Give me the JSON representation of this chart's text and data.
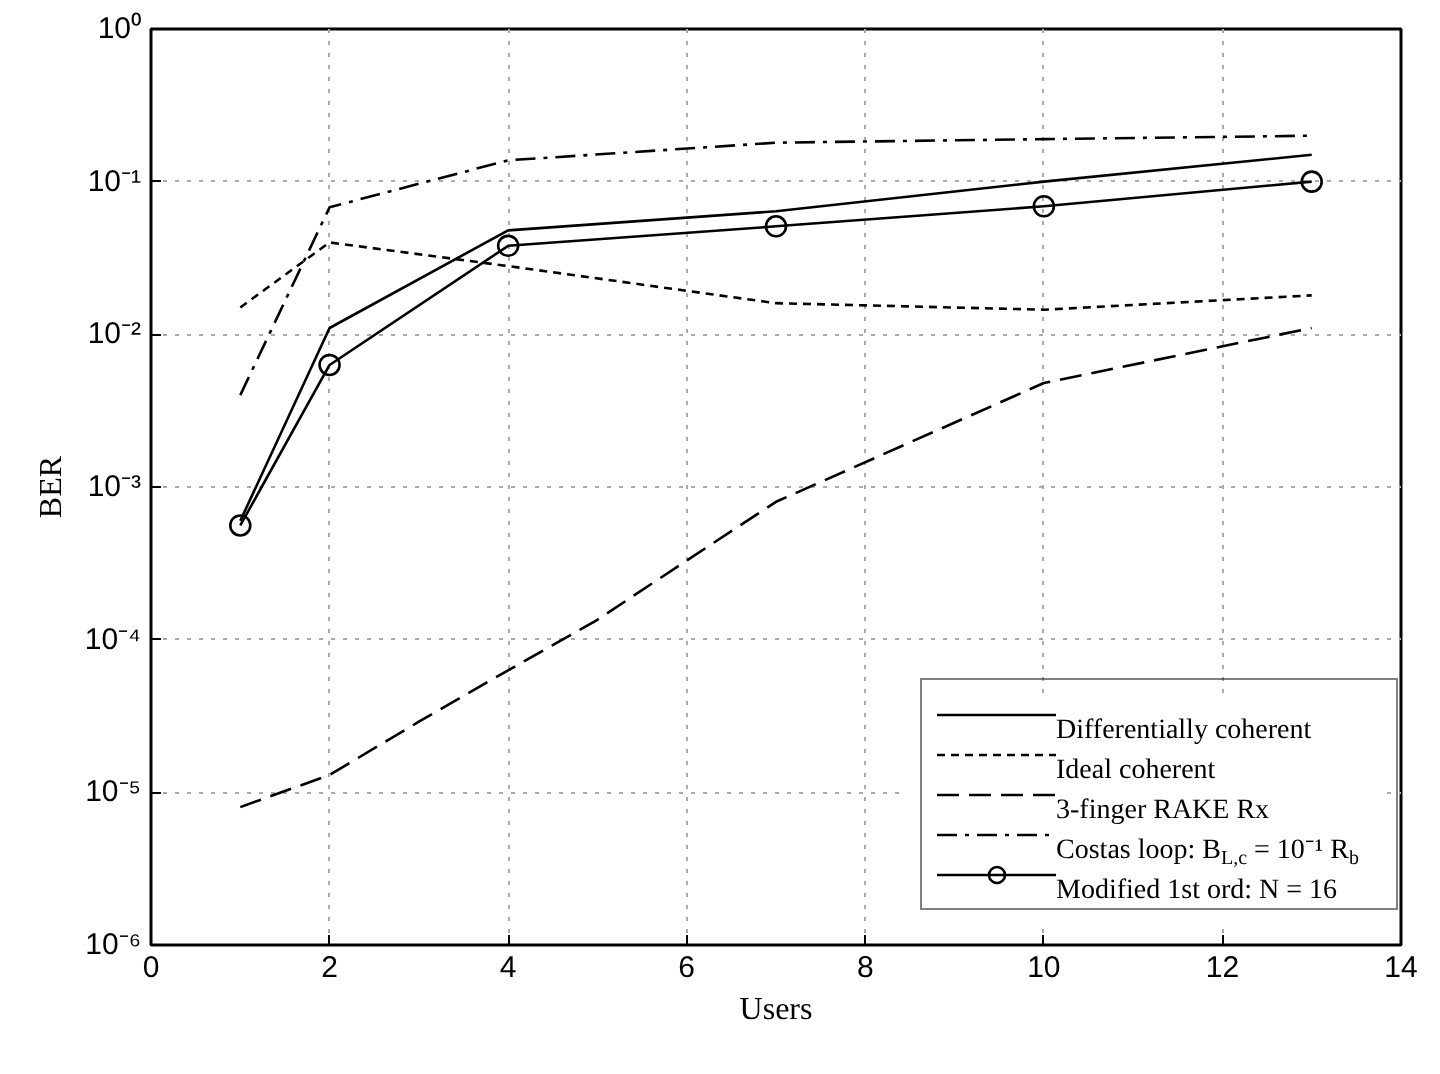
{
  "chart_data": {
    "type": "line",
    "xlabel": "Users",
    "ylabel": "BER",
    "log": "y",
    "grid": true,
    "legend": "bottom right",
    "xlim": [
      0,
      14
    ],
    "xticks": [
      0,
      2,
      4,
      6,
      8,
      10,
      12,
      14
    ],
    "ylim": [
      1e-06,
      1
    ],
    "yticks": [
      {
        "value": 1e-06,
        "label": "10⁻⁶"
      },
      {
        "value": 1e-05,
        "label": "10⁻⁵"
      },
      {
        "value": 0.0001,
        "label": "10⁻⁴"
      },
      {
        "value": 0.001,
        "label": "10⁻³"
      },
      {
        "value": 0.01,
        "label": "10⁻²"
      },
      {
        "value": 0.1,
        "label": "10⁻¹"
      },
      {
        "value": 1,
        "label": "10⁰"
      }
    ],
    "series": [
      {
        "name": "Differentially coherent",
        "color": "#000000",
        "line_style": "solid",
        "marker": "none",
        "x": [
          1,
          2,
          4,
          7,
          10,
          13
        ],
        "values": [
          0.0006,
          0.011,
          0.048,
          0.064,
          0.1,
          0.15
        ]
      },
      {
        "name": "Ideal coherent",
        "color": "#000000",
        "line_style": "dashed",
        "marker": "none",
        "x": [
          1,
          2,
          4,
          7,
          10,
          13
        ],
        "values": [
          0.015,
          0.04,
          0.028,
          0.016,
          0.0145,
          0.018
        ]
      },
      {
        "name": "3-finger RAKE Rx",
        "color": "#000000",
        "line_style": "longdash",
        "marker": "none",
        "x": [
          1,
          2,
          3,
          4,
          5,
          6,
          7,
          10,
          13
        ],
        "values": [
          8e-06,
          1.3e-05,
          2.9e-05,
          6.3e-05,
          0.000135,
          0.00033,
          0.0008,
          0.0048,
          0.011
        ]
      },
      {
        "name": "Costas loop: B$_{L,c}$ = 10⁻¹ R$_{b}$",
        "color": "#000000",
        "line_style": "dashdot",
        "marker": "none",
        "x": [
          1,
          2,
          4,
          7,
          10,
          13
        ],
        "values": [
          0.004,
          0.068,
          0.138,
          0.18,
          0.19,
          0.2
        ]
      },
      {
        "name": "Modified 1st ord: N = 16",
        "color": "#000000",
        "line_style": "solid",
        "marker": "circle",
        "x": [
          1,
          2,
          4,
          7,
          10,
          13
        ],
        "values": [
          0.00056,
          0.0063,
          0.038,
          0.051,
          0.069,
          0.1
        ]
      }
    ]
  }
}
